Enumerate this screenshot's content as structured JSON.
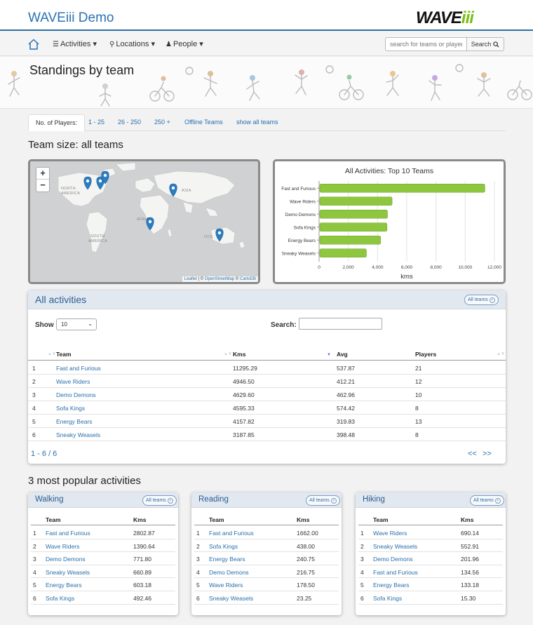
{
  "header": {
    "app_title": "WAVEiii Demo",
    "logo_main": "WAVE",
    "logo_accent": "iii"
  },
  "nav": {
    "activities": "Activities",
    "locations": "Locations",
    "people": "People",
    "search_placeholder": "search for teams or players",
    "search_button": "Search"
  },
  "page": {
    "title": "Standings by team"
  },
  "pills": {
    "label": "No. of Players:",
    "items": [
      "1 - 25",
      "26 - 250",
      "250 +",
      "Offline Teams",
      "show all teams"
    ]
  },
  "team_size_heading": "Team size: all teams",
  "map": {
    "labels": [
      "NORTH",
      "AMERICA",
      "SOUTH",
      "AMERICA",
      "AFRICA",
      "ASIA",
      "OCE"
    ],
    "zoom_in": "+",
    "zoom_out": "−",
    "attribution_leaflet": "Leaflet",
    "attribution_sep": " | © ",
    "attribution_osm": "OpenStreetMap",
    "attribution_sep2": " © ",
    "attribution_carto": "CartoDB"
  },
  "chart_data": {
    "type": "bar",
    "orientation": "horizontal",
    "title": "All Activities: Top 10 Teams",
    "categories": [
      "Fast and Furious",
      "Wave Riders",
      "Demo Demons",
      "Sofa Kings",
      "Energy Bears",
      "Sneaky Weasels"
    ],
    "values": [
      11295.29,
      4946.5,
      4629.6,
      4595.33,
      4157.82,
      3187.85
    ],
    "xlabel": "kms",
    "xlim": [
      0,
      12000
    ],
    "xticks": [
      "0",
      "2,000",
      "4,000",
      "6,000",
      "8,000",
      "10,000",
      "12,000"
    ],
    "bar_color": "#8ec63f",
    "grid": true
  },
  "all_activities": {
    "title": "All activities",
    "all_teams": "All teams",
    "show_label": "Show",
    "show_value": "10",
    "search_label": "Search:",
    "headers": [
      "Team",
      "Kms",
      "Avg",
      "Players"
    ],
    "rows": [
      [
        "1",
        "Fast and Furious",
        "11295.29",
        "537.87",
        "21"
      ],
      [
        "2",
        "Wave Riders",
        "4946.50",
        "412.21",
        "12"
      ],
      [
        "3",
        "Demo Demons",
        "4629.60",
        "462.96",
        "10"
      ],
      [
        "4",
        "Sofa Kings",
        "4595.33",
        "574.42",
        "8"
      ],
      [
        "5",
        "Energy Bears",
        "4157.82",
        "319.83",
        "13"
      ],
      [
        "6",
        "Sneaky Weasels",
        "3187.85",
        "398.48",
        "8"
      ]
    ],
    "pagination": "1 - 6 / 6",
    "prev": "<<",
    "next": ">>"
  },
  "popular_heading": "3 most popular activities",
  "popular": [
    {
      "title": "Walking",
      "all_teams": "All teams",
      "headers": [
        "Team",
        "Kms"
      ],
      "rows": [
        [
          "1",
          "Fast and Furious",
          "2802.87"
        ],
        [
          "2",
          "Wave Riders",
          "1390.64"
        ],
        [
          "3",
          "Demo Demons",
          "771.80"
        ],
        [
          "4",
          "Sneaky Weasels",
          "660.89"
        ],
        [
          "5",
          "Energy Bears",
          "603.18"
        ],
        [
          "6",
          "Sofa Kings",
          "492.46"
        ]
      ]
    },
    {
      "title": "Reading",
      "all_teams": "All teams",
      "headers": [
        "Team",
        "Kms"
      ],
      "rows": [
        [
          "1",
          "Fast and Furious",
          "1662.00"
        ],
        [
          "2",
          "Sofa Kings",
          "438.00"
        ],
        [
          "3",
          "Energy Bears",
          "240.75"
        ],
        [
          "4",
          "Demo Demons",
          "216.75"
        ],
        [
          "5",
          "Wave Riders",
          "178.50"
        ],
        [
          "6",
          "Sneaky Weasels",
          "23.25"
        ]
      ]
    },
    {
      "title": "Hiking",
      "all_teams": "All teams",
      "headers": [
        "Team",
        "Kms"
      ],
      "rows": [
        [
          "1",
          "Wave Riders",
          "690.14"
        ],
        [
          "2",
          "Sneaky Weasels",
          "552.91"
        ],
        [
          "3",
          "Demo Demons",
          "201.96"
        ],
        [
          "4",
          "Fast and Furious",
          "134.56"
        ],
        [
          "5",
          "Energy Bears",
          "133.18"
        ],
        [
          "6",
          "Sofa Kings",
          "15.30"
        ]
      ]
    }
  ]
}
